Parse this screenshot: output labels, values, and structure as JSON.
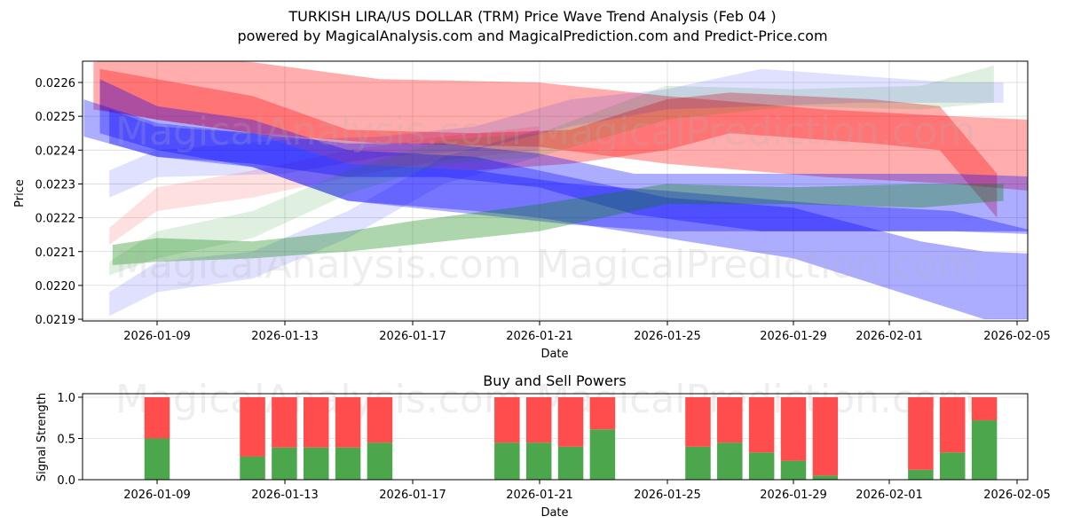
{
  "header": {
    "title": "TURKISH LIRA/US DOLLAR (TRM) Price Wave Trend Analysis (Feb 04 )",
    "subtitle": "powered by MagicalAnalysis.com and MagicalPrediction.com and Predict-Price.com"
  },
  "watermarks": [
    "MagicalAnalysis.com",
    "MagicalPrediction.com"
  ],
  "colors": {
    "red_band": "#ff0000",
    "blue_band": "#0000ff",
    "green_band": "#008000",
    "buy": "#4ca64c",
    "sell": "#ff4c4c"
  },
  "chart_data": [
    {
      "type": "area",
      "title": "TURKISH LIRA/US DOLLAR (TRM) Price Wave Trend Analysis (Feb 04 )",
      "xlabel": "Date",
      "ylabel": "Price",
      "x_ticks": [
        "2026-01-09",
        "2026-01-13",
        "2026-01-17",
        "2026-01-21",
        "2026-01-25",
        "2026-01-29",
        "2026-02-01",
        "2026-02-05"
      ],
      "y_ticks": [
        "0.0219",
        "0.0220",
        "0.0221",
        "0.0222",
        "0.0223",
        "0.0224",
        "0.0225",
        "0.0226"
      ],
      "ylim": [
        0.02189,
        0.02266
      ],
      "grid": true,
      "legend": "none",
      "x_origin": "2026-01-09 = day 0",
      "series": [
        {
          "name": "red wave 1",
          "color": "red",
          "opacity": 0.32,
          "x": [
            -2,
            0,
            3,
            7,
            12,
            16,
            21,
            25,
            27.4
          ],
          "upper": [
            0.02266,
            0.02268,
            0.02266,
            0.02261,
            0.0226,
            0.02256,
            0.02252,
            0.0225,
            0.02249
          ],
          "lower": [
            0.02252,
            0.02249,
            0.02245,
            0.02242,
            0.02241,
            0.02236,
            0.02232,
            0.0223,
            0.02228
          ]
        },
        {
          "name": "red wave 2",
          "color": "red",
          "opacity": 0.32,
          "x": [
            -1.8,
            0,
            3,
            6,
            10,
            13,
            16,
            18,
            22.5,
            24.6,
            26.4
          ],
          "upper": [
            0.02264,
            0.02261,
            0.02256,
            0.02246,
            0.02245,
            0.02246,
            0.02255,
            0.02257,
            0.02255,
            0.02253,
            0.02233
          ],
          "lower": [
            0.02252,
            0.02249,
            0.02245,
            0.02236,
            0.02234,
            0.02236,
            0.0224,
            0.02245,
            0.02242,
            0.0224,
            0.0222
          ]
        },
        {
          "name": "red wave 3",
          "color": "red",
          "opacity": 0.12,
          "x": [
            -1.5,
            0,
            3,
            6,
            9,
            12
          ],
          "upper": [
            0.02217,
            0.02229,
            0.02234,
            0.0224,
            0.02244,
            0.02247
          ],
          "lower": [
            0.02212,
            0.02222,
            0.02226,
            0.02232,
            0.02237,
            0.0224
          ]
        },
        {
          "name": "blue wave 1",
          "color": "blue",
          "opacity": 0.32,
          "x": [
            -1.8,
            0,
            3,
            6,
            10,
            12,
            16,
            20,
            24,
            26,
            28.5
          ],
          "upper": [
            0.02261,
            0.02253,
            0.02249,
            0.0224,
            0.02238,
            0.02234,
            0.02226,
            0.02223,
            0.02213,
            0.0221,
            0.02209
          ],
          "lower": [
            0.02245,
            0.0224,
            0.02235,
            0.02225,
            0.02222,
            0.0222,
            0.02214,
            0.02208,
            0.02196,
            0.0219,
            0.0219
          ]
        },
        {
          "name": "blue wave 2",
          "color": "blue",
          "opacity": 0.32,
          "x": [
            -2.3,
            0,
            3,
            6,
            10,
            13,
            16,
            21,
            25,
            27.6
          ],
          "upper": [
            0.02255,
            0.02248,
            0.02245,
            0.02236,
            0.02234,
            0.0223,
            0.02228,
            0.02224,
            0.02222,
            0.02216
          ],
          "lower": [
            0.02244,
            0.02238,
            0.02235,
            0.02225,
            0.02221,
            0.02218,
            0.02216,
            0.02216,
            0.02216,
            0.02216
          ]
        },
        {
          "name": "blue wave 3",
          "color": "blue",
          "opacity": 0.32,
          "x": [
            -1.5,
            0,
            3,
            6,
            9,
            12,
            15,
            19,
            22,
            25,
            28
          ],
          "upper": [
            0.02252,
            0.02247,
            0.02245,
            0.02242,
            0.02242,
            0.02239,
            0.02233,
            0.02233,
            0.02233,
            0.02233,
            0.02232
          ],
          "lower": [
            0.02242,
            0.02238,
            0.02236,
            0.02232,
            0.02232,
            0.02229,
            0.02221,
            0.02216,
            0.02216,
            0.02216,
            0.02215
          ]
        },
        {
          "name": "blue wave 4",
          "color": "blue",
          "opacity": 0.12,
          "x": [
            -1.5,
            0,
            4,
            7,
            10,
            13,
            16,
            19,
            22,
            25,
            26.6
          ],
          "upper": [
            0.02234,
            0.0224,
            0.02243,
            0.02244,
            0.02247,
            0.02255,
            0.02258,
            0.02264,
            0.02262,
            0.0226,
            0.0226
          ],
          "lower": [
            0.02226,
            0.02232,
            0.02233,
            0.02238,
            0.0224,
            0.02247,
            0.02252,
            0.02253,
            0.02254,
            0.02254,
            0.02254
          ]
        },
        {
          "name": "blue wave 5",
          "color": "blue",
          "opacity": 0.12,
          "x": [
            -1.5,
            0,
            3,
            6,
            9,
            12
          ],
          "upper": [
            0.02198,
            0.02207,
            0.0221,
            0.02222,
            0.02238,
            0.02246
          ],
          "lower": [
            0.02191,
            0.02198,
            0.02202,
            0.02214,
            0.0223,
            0.02238
          ]
        },
        {
          "name": "green wave 1",
          "color": "green",
          "opacity": 0.32,
          "x": [
            -1.4,
            0,
            3,
            6,
            8,
            12,
            16,
            20,
            24,
            26.6
          ],
          "upper": [
            0.02212,
            0.02214,
            0.02213,
            0.02216,
            0.02219,
            0.02224,
            0.0223,
            0.02229,
            0.0223,
            0.0223
          ],
          "lower": [
            0.02206,
            0.02207,
            0.02208,
            0.0221,
            0.02212,
            0.02216,
            0.02224,
            0.02224,
            0.02223,
            0.02225
          ]
        },
        {
          "name": "green wave 2",
          "color": "green",
          "opacity": 0.12,
          "x": [
            -1.5,
            0,
            3,
            6,
            9,
            12,
            16,
            20,
            24,
            26.3
          ],
          "upper": [
            0.02207,
            0.02216,
            0.02222,
            0.02234,
            0.02243,
            0.02245,
            0.02259,
            0.02258,
            0.02259,
            0.02265
          ],
          "lower": [
            0.02203,
            0.02208,
            0.02214,
            0.02227,
            0.02236,
            0.02238,
            0.02249,
            0.02253,
            0.02252,
            0.02254
          ]
        }
      ]
    },
    {
      "type": "bar",
      "stacked": true,
      "title": "Buy and Sell Powers",
      "xlabel": "Date",
      "ylabel": "Signal Strength",
      "ylim": [
        0,
        1.05
      ],
      "y_ticks": [
        "0.0",
        "0.5",
        "1.0"
      ],
      "x_ticks": [
        "2026-01-09",
        "2026-01-13",
        "2026-01-17",
        "2026-01-21",
        "2026-01-25",
        "2026-01-29",
        "2026-02-01",
        "2026-02-05"
      ],
      "categories": [
        "2026-01-09",
        "2026-01-12",
        "2026-01-13",
        "2026-01-14",
        "2026-01-15",
        "2026-01-16",
        "2026-01-20",
        "2026-01-21",
        "2026-01-22",
        "2026-01-23",
        "2026-01-26",
        "2026-01-27",
        "2026-01-28",
        "2026-01-29",
        "2026-01-30",
        "2026-02-02",
        "2026-02-03",
        "2026-02-04"
      ],
      "day_index": [
        0,
        3,
        4,
        5,
        6,
        7,
        11,
        12,
        13,
        14,
        17,
        18,
        19,
        20,
        21,
        24,
        25,
        26
      ],
      "series": [
        {
          "name": "Buy",
          "color": "green",
          "values": [
            0.5,
            0.28,
            0.39,
            0.39,
            0.39,
            0.45,
            0.45,
            0.45,
            0.4,
            0.61,
            0.4,
            0.45,
            0.33,
            0.23,
            0.05,
            0.12,
            0.33,
            0.72
          ]
        },
        {
          "name": "Sell",
          "color": "red",
          "values": [
            0.5,
            0.72,
            0.61,
            0.61,
            0.61,
            0.55,
            0.55,
            0.55,
            0.6,
            0.39,
            0.6,
            0.55,
            0.67,
            0.77,
            0.95,
            0.88,
            0.67,
            0.28
          ]
        }
      ]
    }
  ]
}
